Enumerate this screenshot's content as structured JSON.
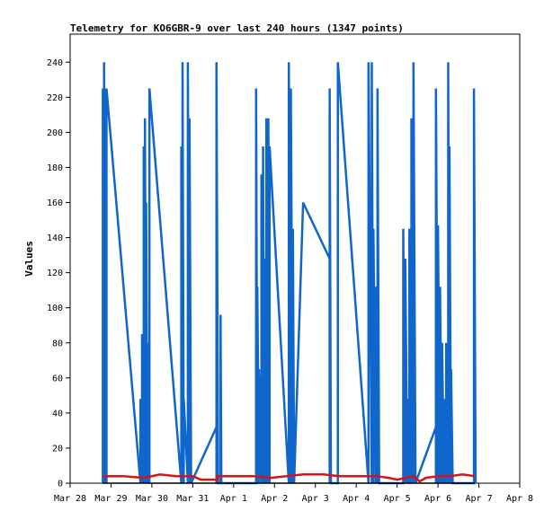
{
  "chart_data": {
    "type": "line",
    "title": "Telemetry for KO6GBR-9 over last 240 hours (1347 points)",
    "xlabel": "",
    "ylabel": "Values",
    "x_tick_labels": [
      "Mar 28",
      "Mar 29",
      "Mar 30",
      "Mar 31",
      "Apr 1",
      "Apr 2",
      "Apr 3",
      "Apr 4",
      "Apr 5",
      "Apr 6",
      "Apr 7",
      "Apr 8"
    ],
    "xlim": [
      0,
      11
    ],
    "ylim": [
      0,
      256
    ],
    "y_ticks": [
      0,
      20,
      40,
      60,
      80,
      100,
      120,
      140,
      160,
      180,
      200,
      220,
      240
    ],
    "grid": false,
    "legend": "none",
    "series": [
      {
        "color": "#1166cc",
        "points": [
          [
            0.8,
            0
          ],
          [
            0.8,
            225
          ],
          [
            0.83,
            0
          ],
          [
            0.83,
            240
          ],
          [
            0.86,
            0
          ],
          [
            0.86,
            225
          ],
          [
            0.89,
            0
          ],
          [
            0.89,
            225
          ],
          [
            1.72,
            0
          ],
          [
            1.72,
            48
          ],
          [
            1.76,
            0
          ],
          [
            1.76,
            85
          ],
          [
            1.8,
            0
          ],
          [
            1.8,
            192
          ],
          [
            1.83,
            0
          ],
          [
            1.83,
            208
          ],
          [
            1.86,
            0
          ],
          [
            1.86,
            160
          ],
          [
            1.89,
            0
          ],
          [
            1.89,
            80
          ],
          [
            1.94,
            0
          ],
          [
            1.94,
            225
          ],
          [
            2.72,
            0
          ],
          [
            2.72,
            192
          ],
          [
            2.75,
            0
          ],
          [
            2.75,
            240
          ],
          [
            2.78,
            0
          ],
          [
            2.78,
            48
          ],
          [
            2.88,
            0
          ],
          [
            2.88,
            240
          ],
          [
            2.92,
            0
          ],
          [
            2.92,
            208
          ],
          [
            2.96,
            0
          ],
          [
            3.58,
            32
          ],
          [
            3.58,
            0
          ],
          [
            3.58,
            240
          ],
          [
            3.62,
            0
          ],
          [
            3.68,
            0
          ],
          [
            3.68,
            96
          ],
          [
            3.7,
            0
          ],
          [
            4.55,
            0
          ],
          [
            4.55,
            225
          ],
          [
            4.58,
            0
          ],
          [
            4.58,
            112
          ],
          [
            4.62,
            0
          ],
          [
            4.62,
            65
          ],
          [
            4.68,
            0
          ],
          [
            4.68,
            176
          ],
          [
            4.72,
            0
          ],
          [
            4.72,
            192
          ],
          [
            4.75,
            0
          ],
          [
            4.75,
            128
          ],
          [
            4.8,
            0
          ],
          [
            4.8,
            208
          ],
          [
            4.85,
            0
          ],
          [
            4.85,
            208
          ],
          [
            4.88,
            0
          ],
          [
            4.88,
            192
          ],
          [
            5.35,
            0
          ],
          [
            5.35,
            240
          ],
          [
            5.4,
            0
          ],
          [
            5.4,
            225
          ],
          [
            5.45,
            0
          ],
          [
            5.45,
            145
          ],
          [
            5.48,
            0
          ],
          [
            5.7,
            160
          ],
          [
            6.35,
            128
          ],
          [
            6.35,
            0
          ],
          [
            6.35,
            225
          ],
          [
            6.38,
            0
          ],
          [
            6.55,
            0
          ],
          [
            6.55,
            240
          ],
          [
            7.3,
            0
          ],
          [
            7.3,
            240
          ],
          [
            7.38,
            0
          ],
          [
            7.38,
            240
          ],
          [
            7.42,
            0
          ],
          [
            7.42,
            145
          ],
          [
            7.48,
            0
          ],
          [
            7.48,
            112
          ],
          [
            7.52,
            0
          ],
          [
            7.52,
            225
          ],
          [
            7.56,
            0
          ],
          [
            8.15,
            0
          ],
          [
            8.15,
            145
          ],
          [
            8.2,
            0
          ],
          [
            8.2,
            128
          ],
          [
            8.25,
            0
          ],
          [
            8.25,
            48
          ],
          [
            8.3,
            0
          ],
          [
            8.3,
            145
          ],
          [
            8.35,
            0
          ],
          [
            8.35,
            208
          ],
          [
            8.4,
            0
          ],
          [
            8.4,
            240
          ],
          [
            8.45,
            0
          ],
          [
            8.95,
            32
          ],
          [
            8.95,
            0
          ],
          [
            8.95,
            225
          ],
          [
            9.0,
            0
          ],
          [
            9.0,
            147
          ],
          [
            9.05,
            0
          ],
          [
            9.05,
            112
          ],
          [
            9.1,
            0
          ],
          [
            9.1,
            80
          ],
          [
            9.15,
            0
          ],
          [
            9.15,
            48
          ],
          [
            9.2,
            0
          ],
          [
            9.2,
            80
          ],
          [
            9.25,
            0
          ],
          [
            9.25,
            240
          ],
          [
            9.28,
            0
          ],
          [
            9.28,
            192
          ],
          [
            9.32,
            0
          ],
          [
            9.32,
            65
          ],
          [
            9.36,
            0
          ],
          [
            9.88,
            0
          ],
          [
            9.88,
            225
          ],
          [
            9.92,
            0
          ]
        ]
      },
      {
        "color": "#dd1111",
        "points": [
          [
            0.8,
            4
          ],
          [
            1.3,
            4
          ],
          [
            1.8,
            3
          ],
          [
            2.2,
            5
          ],
          [
            2.6,
            4
          ],
          [
            3.0,
            4
          ],
          [
            3.2,
            2
          ],
          [
            3.6,
            2
          ],
          [
            3.6,
            4
          ],
          [
            4.0,
            4
          ],
          [
            4.5,
            4
          ],
          [
            4.9,
            3
          ],
          [
            5.3,
            4
          ],
          [
            5.7,
            5
          ],
          [
            6.2,
            5
          ],
          [
            6.6,
            4
          ],
          [
            7.0,
            4
          ],
          [
            7.5,
            4
          ],
          [
            7.8,
            3
          ],
          [
            8.0,
            2
          ],
          [
            8.4,
            4
          ],
          [
            8.55,
            1
          ],
          [
            8.7,
            3
          ],
          [
            9.0,
            4
          ],
          [
            9.3,
            4
          ],
          [
            9.6,
            5
          ],
          [
            9.9,
            4
          ]
        ]
      },
      {
        "color": "#000000",
        "points": [
          [
            0.8,
            0
          ],
          [
            9.9,
            0
          ]
        ]
      }
    ]
  }
}
